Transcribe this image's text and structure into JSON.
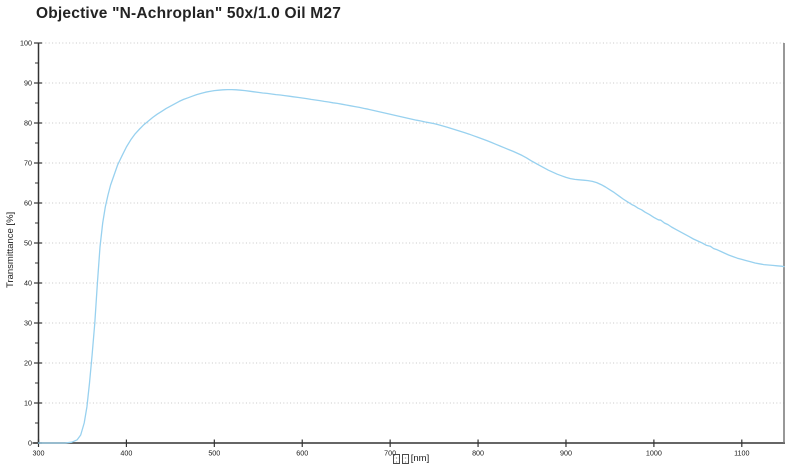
{
  "chart_data": {
    "type": "line",
    "title": "Objective \"N-Achroplan\" 50x/1.0 Oil M27",
    "ylabel": "Transmittance [%]",
    "xlabel_unit": "[nm]",
    "xlabel_missing_glyph_count": 2,
    "xlim": [
      300,
      1148
    ],
    "ylim": [
      0,
      100
    ],
    "x_ticks": [
      300,
      400,
      500,
      600,
      700,
      800,
      900,
      1000,
      1100
    ],
    "y_ticks": [
      0,
      10,
      20,
      30,
      40,
      50,
      60,
      70,
      80,
      90,
      100
    ],
    "y_minor_tick_step": 5,
    "grid": "horizontal dotted lines at each y major tick (10-100), no vertical grid",
    "legend": "none",
    "series": [
      {
        "name": "transmittance",
        "points": [
          [
            300,
            0
          ],
          [
            310,
            0
          ],
          [
            320,
            0
          ],
          [
            330,
            0
          ],
          [
            338,
            0.2
          ],
          [
            344,
            0.8
          ],
          [
            348,
            2
          ],
          [
            352,
            5
          ],
          [
            355,
            9
          ],
          [
            358,
            15
          ],
          [
            361,
            22
          ],
          [
            364,
            30
          ],
          [
            367,
            40
          ],
          [
            370,
            49
          ],
          [
            373,
            55
          ],
          [
            376,
            59
          ],
          [
            379,
            62
          ],
          [
            382,
            64.5
          ],
          [
            386,
            67
          ],
          [
            390,
            69.5
          ],
          [
            395,
            71.8
          ],
          [
            400,
            74
          ],
          [
            405,
            75.8
          ],
          [
            410,
            77.3
          ],
          [
            415,
            78.5
          ],
          [
            420,
            79.6
          ],
          [
            425,
            80.5
          ],
          [
            430,
            81.4
          ],
          [
            435,
            82.2
          ],
          [
            440,
            82.9
          ],
          [
            445,
            83.6
          ],
          [
            450,
            84.2
          ],
          [
            455,
            84.8
          ],
          [
            460,
            85.4
          ],
          [
            465,
            85.9
          ],
          [
            470,
            86.3
          ],
          [
            475,
            86.7
          ],
          [
            480,
            87.1
          ],
          [
            485,
            87.4
          ],
          [
            490,
            87.7
          ],
          [
            495,
            87.9
          ],
          [
            500,
            88.1
          ],
          [
            505,
            88.2
          ],
          [
            510,
            88.3
          ],
          [
            515,
            88.35
          ],
          [
            520,
            88.35
          ],
          [
            525,
            88.3
          ],
          [
            530,
            88.2
          ],
          [
            535,
            88.1
          ],
          [
            540,
            87.95
          ],
          [
            545,
            87.8
          ],
          [
            550,
            87.65
          ],
          [
            555,
            87.5
          ],
          [
            560,
            87.4
          ],
          [
            565,
            87.25
          ],
          [
            570,
            87.1
          ],
          [
            575,
            87
          ],
          [
            580,
            86.85
          ],
          [
            585,
            86.7
          ],
          [
            590,
            86.55
          ],
          [
            595,
            86.4
          ],
          [
            600,
            86.25
          ],
          [
            605,
            86.1
          ],
          [
            610,
            85.9
          ],
          [
            615,
            85.75
          ],
          [
            620,
            85.6
          ],
          [
            625,
            85.4
          ],
          [
            630,
            85.25
          ],
          [
            635,
            85.05
          ],
          [
            640,
            84.9
          ],
          [
            645,
            84.7
          ],
          [
            650,
            84.5
          ],
          [
            655,
            84.3
          ],
          [
            660,
            84.1
          ],
          [
            665,
            83.9
          ],
          [
            670,
            83.65
          ],
          [
            675,
            83.45
          ],
          [
            680,
            83.2
          ],
          [
            685,
            82.95
          ],
          [
            690,
            82.7
          ],
          [
            695,
            82.45
          ],
          [
            700,
            82.2
          ],
          [
            705,
            81.95
          ],
          [
            710,
            81.7
          ],
          [
            715,
            81.45
          ],
          [
            720,
            81.2
          ],
          [
            725,
            80.95
          ],
          [
            730,
            80.7
          ],
          [
            735,
            80.5
          ],
          [
            740,
            80.25
          ],
          [
            745,
            80.05
          ],
          [
            750,
            79.85
          ],
          [
            755,
            79.55
          ],
          [
            760,
            79.25
          ],
          [
            765,
            78.95
          ],
          [
            770,
            78.6
          ],
          [
            775,
            78.25
          ],
          [
            780,
            77.9
          ],
          [
            785,
            77.55
          ],
          [
            790,
            77.2
          ],
          [
            795,
            76.8
          ],
          [
            800,
            76.4
          ],
          [
            805,
            76
          ],
          [
            810,
            75.6
          ],
          [
            815,
            75.15
          ],
          [
            820,
            74.7
          ],
          [
            825,
            74.25
          ],
          [
            830,
            73.8
          ],
          [
            835,
            73.35
          ],
          [
            840,
            72.9
          ],
          [
            845,
            72.4
          ],
          [
            850,
            71.9
          ],
          [
            855,
            71.3
          ],
          [
            860,
            70.6
          ],
          [
            865,
            70
          ],
          [
            870,
            69.4
          ],
          [
            875,
            68.8
          ],
          [
            880,
            68.2
          ],
          [
            885,
            67.7
          ],
          [
            890,
            67.2
          ],
          [
            895,
            66.8
          ],
          [
            900,
            66.4
          ],
          [
            905,
            66.1
          ],
          [
            910,
            65.9
          ],
          [
            915,
            65.8
          ],
          [
            920,
            65.7
          ],
          [
            925,
            65.6
          ],
          [
            930,
            65.4
          ],
          [
            935,
            65.1
          ],
          [
            940,
            64.6
          ],
          [
            945,
            64
          ],
          [
            950,
            63.3
          ],
          [
            955,
            62.6
          ],
          [
            960,
            61.8
          ],
          [
            965,
            61
          ],
          [
            970,
            60.3
          ],
          [
            975,
            59.6
          ],
          [
            978,
            59.3
          ],
          [
            982,
            58.7
          ],
          [
            986,
            58.3
          ],
          [
            990,
            57.7
          ],
          [
            995,
            57.1
          ],
          [
            1000,
            56.4
          ],
          [
            1005,
            55.8
          ],
          [
            1008,
            55.7
          ],
          [
            1012,
            55
          ],
          [
            1016,
            54.6
          ],
          [
            1020,
            54
          ],
          [
            1025,
            53.4
          ],
          [
            1030,
            52.8
          ],
          [
            1035,
            52.2
          ],
          [
            1040,
            51.6
          ],
          [
            1045,
            51
          ],
          [
            1050,
            50.5
          ],
          [
            1055,
            50
          ],
          [
            1060,
            49.4
          ],
          [
            1064,
            49.2
          ],
          [
            1068,
            48.6
          ],
          [
            1072,
            48.3
          ],
          [
            1076,
            47.9
          ],
          [
            1080,
            47.5
          ],
          [
            1085,
            47
          ],
          [
            1090,
            46.6
          ],
          [
            1095,
            46.2
          ],
          [
            1100,
            45.9
          ],
          [
            1105,
            45.6
          ],
          [
            1110,
            45.3
          ],
          [
            1115,
            45
          ],
          [
            1120,
            44.8
          ],
          [
            1125,
            44.6
          ],
          [
            1130,
            44.5
          ],
          [
            1135,
            44.4
          ],
          [
            1140,
            44.3
          ],
          [
            1145,
            44.2
          ],
          [
            1148,
            44.1
          ]
        ]
      }
    ],
    "colors": {
      "curve": "#98d1ef",
      "axis": "#333333",
      "right_frame": "#777777",
      "gridline": "#c9c9c9",
      "tick_label": "#1a1a1a",
      "title": "#232323",
      "background": "#ffffff"
    }
  }
}
